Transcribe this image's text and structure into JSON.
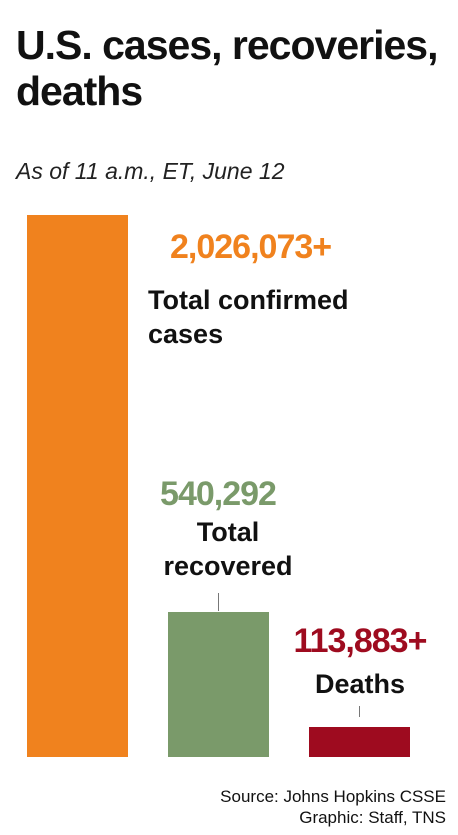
{
  "chart_data": {
    "type": "bar",
    "title": "U.S. cases, recoveries, deaths",
    "subtitle": "As of 11 a.m., ET, June 12",
    "categories": [
      "Total confirmed cases",
      "Total recovered",
      "Deaths"
    ],
    "values": [
      2026073,
      540292,
      113883
    ],
    "value_labels": [
      "2,026,073+",
      "540,292",
      "113,883+"
    ],
    "colors": [
      "#f0821e",
      "#7a9a6a",
      "#9e0b1f"
    ],
    "source": "Source: Johns Hopkins CSSE",
    "credit": "Graphic: Staff, TNS"
  }
}
